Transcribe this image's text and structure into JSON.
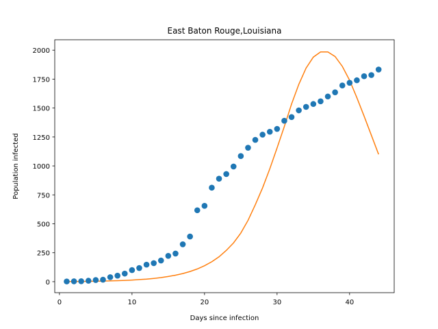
{
  "chart_data": {
    "type": "scatter",
    "title": "East Baton Rouge,Louisiana",
    "xlabel": "Days since infection",
    "ylabel": "Population infected",
    "xlim": [
      -0.65,
      46.15
    ],
    "ylim": [
      -95,
      2090
    ],
    "xticks": [
      0,
      10,
      20,
      30,
      40
    ],
    "yticks": [
      0,
      250,
      500,
      750,
      1000,
      1250,
      1500,
      1750,
      2000
    ],
    "grid": false,
    "legend": "none",
    "colors": {
      "observed": "#1f77b4",
      "model": "#ff7f0e"
    },
    "series": [
      {
        "kind": "scatter",
        "x": [
          1,
          2,
          3,
          4,
          5,
          6,
          7,
          8,
          9,
          10,
          11,
          12,
          13,
          14,
          15,
          16,
          17,
          18,
          19,
          20,
          21,
          22,
          23,
          24,
          25,
          26,
          27,
          28,
          29,
          30,
          31,
          32,
          33,
          34,
          35,
          36,
          37,
          38,
          39,
          40,
          41,
          42,
          43,
          44
        ],
        "y": [
          2,
          3,
          4,
          8,
          14,
          17,
          39,
          52,
          70,
          100,
          118,
          147,
          160,
          183,
          223,
          243,
          323,
          390,
          617,
          655,
          812,
          890,
          930,
          995,
          1085,
          1157,
          1225,
          1270,
          1295,
          1320,
          1390,
          1422,
          1480,
          1510,
          1535,
          1558,
          1600,
          1636,
          1695,
          1718,
          1740,
          1775,
          1785,
          1833
        ]
      },
      {
        "kind": "line",
        "x": [
          1,
          2,
          3,
          4,
          5,
          6,
          7,
          8,
          9,
          10,
          11,
          12,
          13,
          14,
          15,
          16,
          17,
          18,
          19,
          20,
          21,
          22,
          23,
          24,
          25,
          26,
          27,
          28,
          29,
          30,
          31,
          32,
          33,
          34,
          35,
          36,
          37,
          38,
          39,
          40,
          41,
          42,
          43,
          44
        ],
        "y": [
          1,
          1,
          2,
          3,
          4,
          5,
          7,
          9,
          11,
          14,
          18,
          22,
          28,
          35,
          45,
          56,
          70,
          88,
          110,
          138,
          172,
          215,
          270,
          335,
          420,
          530,
          665,
          810,
          975,
          1155,
          1340,
          1535,
          1705,
          1845,
          1940,
          1985,
          1985,
          1945,
          1860,
          1740,
          1590,
          1430,
          1265,
          1100
        ]
      }
    ]
  }
}
